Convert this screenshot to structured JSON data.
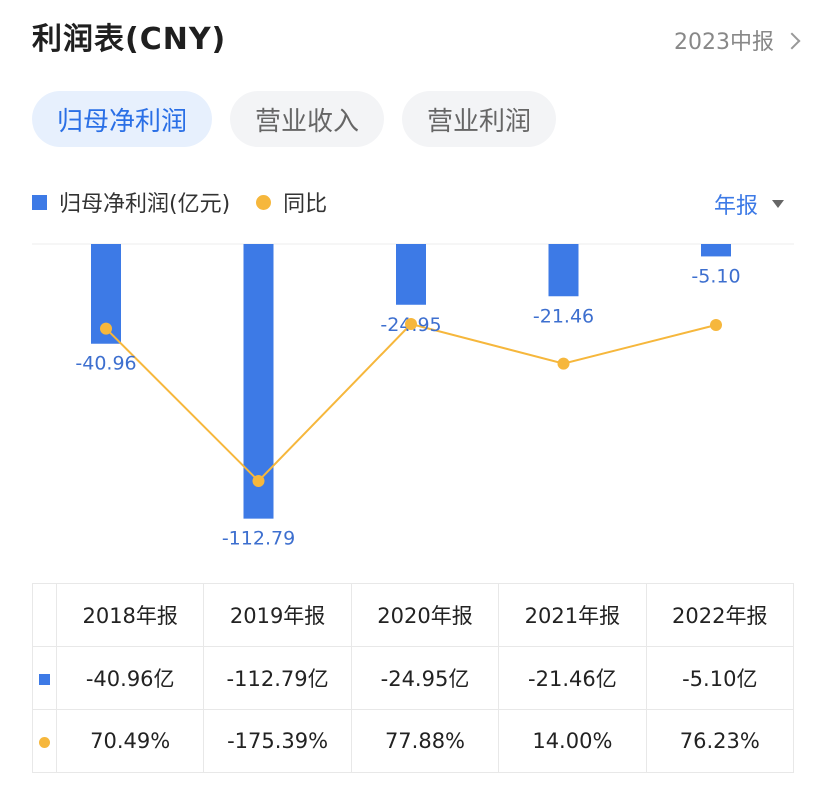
{
  "header": {
    "title": "利润表(CNY)",
    "period_link": "2023中报"
  },
  "tabs": [
    {
      "label": "归母净利润",
      "active": true
    },
    {
      "label": "营业收入",
      "active": false
    },
    {
      "label": "营业利润",
      "active": false
    }
  ],
  "legend": {
    "bar": "归母净利润(亿元)",
    "line": "同比"
  },
  "period_select": "年报",
  "colors": {
    "bar": "#3d7ae6",
    "line": "#f6b73c",
    "positive": "#e0453c",
    "negative": "#1ea87a",
    "accent": "#2a6fe6"
  },
  "chart_data": {
    "type": "bar",
    "categories": [
      "2018年报",
      "2019年报",
      "2020年报",
      "2021年报",
      "2022年报"
    ],
    "series": [
      {
        "name": "归母净利润(亿元)",
        "type": "bar",
        "values": [
          -40.96,
          -112.79,
          -24.95,
          -21.46,
          -5.1
        ],
        "labels": [
          "-40.96",
          "-112.79",
          "-24.95",
          "-21.46",
          "-5.10"
        ]
      },
      {
        "name": "同比",
        "type": "line",
        "values": [
          70.49,
          -175.39,
          77.88,
          14.0,
          76.23
        ]
      }
    ],
    "ylim": [
      -120,
      0
    ]
  },
  "table": {
    "headers": [
      "2018年报",
      "2019年报",
      "2020年报",
      "2021年报",
      "2022年报"
    ],
    "values": [
      "-40.96亿",
      "-112.79亿",
      "-24.95亿",
      "-21.46亿",
      "-5.10亿"
    ],
    "yoy": [
      "70.49%",
      "-175.39%",
      "77.88%",
      "14.00%",
      "76.23%"
    ]
  }
}
